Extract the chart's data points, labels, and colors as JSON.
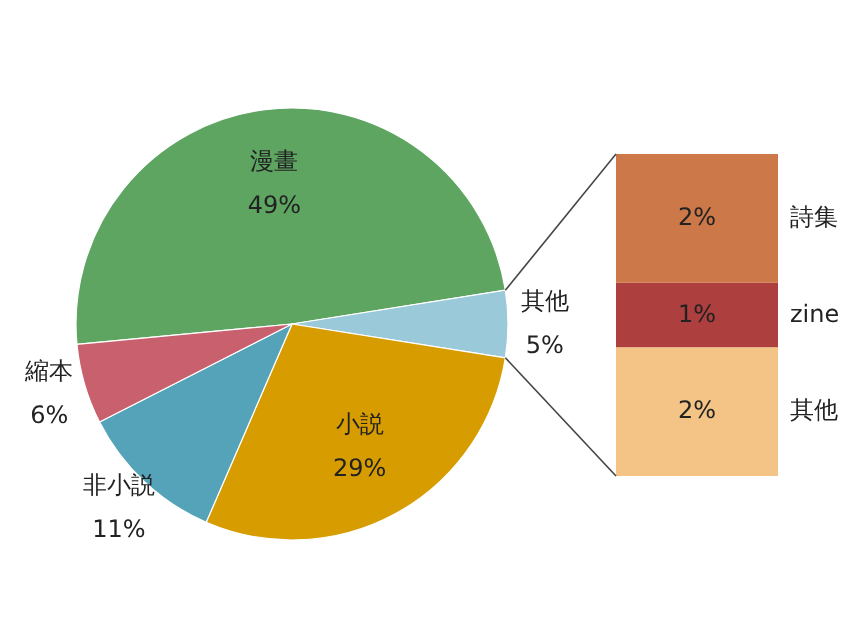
{
  "chart_data": [
    {
      "type": "pie",
      "categories": [
        "漫畫",
        "其他",
        "小説",
        "非小説",
        "縮本"
      ],
      "values": [
        49,
        5,
        29,
        11,
        6
      ],
      "colors": [
        "#5ea562",
        "#9ac9d9",
        "#d79c00",
        "#55a3b9",
        "#c9606e"
      ],
      "value_labels": [
        "49%",
        "5%",
        "29%",
        "11%",
        "6%"
      ]
    },
    {
      "type": "bar",
      "stacked": true,
      "categories": [
        null
      ],
      "series": [
        {
          "name": "其他",
          "color": "#f3c486",
          "values": [
            2
          ],
          "value_labels": [
            "2%"
          ]
        },
        {
          "name": "zine",
          "color": "#ad3f3f",
          "values": [
            1
          ],
          "value_labels": [
            "1%"
          ]
        },
        {
          "name": "詩集",
          "color": "#cc7848",
          "values": [
            2
          ],
          "value_labels": [
            "2%"
          ]
        }
      ]
    }
  ]
}
